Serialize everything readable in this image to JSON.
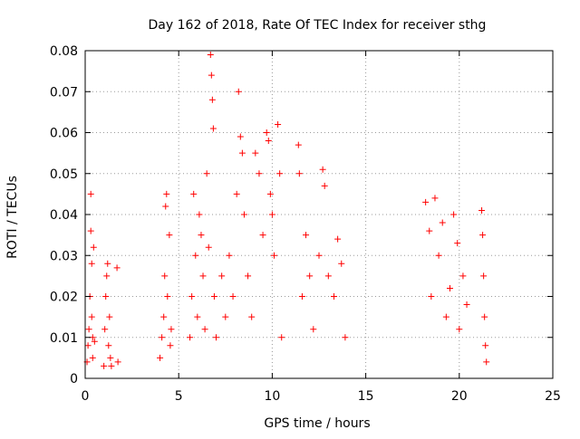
{
  "chart_data": {
    "type": "scatter",
    "title": "Day 162 of 2018, Rate Of TEC Index for receiver sthg",
    "xlabel": "GPS time / hours",
    "ylabel": "ROTI / TECUs",
    "xlim": [
      0,
      25
    ],
    "ylim": [
      0,
      0.08
    ],
    "xticks": [
      0,
      5,
      10,
      15,
      20,
      25
    ],
    "xtick_labels": [
      "0",
      "5",
      "10",
      "15",
      "20",
      "25"
    ],
    "yticks": [
      0,
      0.01,
      0.02,
      0.03,
      0.04,
      0.05,
      0.06,
      0.07,
      0.08
    ],
    "ytick_labels": [
      "0",
      "0.01",
      "0.02",
      "0.03",
      "0.04",
      "0.05",
      "0.06",
      "0.07",
      "0.08"
    ],
    "grid": true,
    "marker": "+",
    "marker_color": "#ff0000",
    "series": [
      {
        "name": "ROTI",
        "points": [
          [
            0.1,
            0.004
          ],
          [
            0.15,
            0.008
          ],
          [
            0.2,
            0.012
          ],
          [
            0.25,
            0.02
          ],
          [
            0.3,
            0.045
          ],
          [
            0.3,
            0.036
          ],
          [
            0.35,
            0.028
          ],
          [
            0.35,
            0.015
          ],
          [
            0.4,
            0.01
          ],
          [
            0.4,
            0.005
          ],
          [
            0.45,
            0.032
          ],
          [
            0.5,
            0.009
          ],
          [
            1.0,
            0.003
          ],
          [
            1.05,
            0.012
          ],
          [
            1.1,
            0.02
          ],
          [
            1.15,
            0.025
          ],
          [
            1.2,
            0.028
          ],
          [
            1.25,
            0.008
          ],
          [
            1.3,
            0.015
          ],
          [
            1.35,
            0.005
          ],
          [
            1.4,
            0.003
          ],
          [
            1.7,
            0.027
          ],
          [
            1.75,
            0.004
          ],
          [
            4.0,
            0.005
          ],
          [
            4.1,
            0.01
          ],
          [
            4.2,
            0.015
          ],
          [
            4.25,
            0.025
          ],
          [
            4.3,
            0.042
          ],
          [
            4.35,
            0.045
          ],
          [
            4.4,
            0.02
          ],
          [
            4.5,
            0.035
          ],
          [
            4.55,
            0.008
          ],
          [
            4.6,
            0.012
          ],
          [
            5.6,
            0.01
          ],
          [
            5.7,
            0.02
          ],
          [
            5.8,
            0.045
          ],
          [
            5.9,
            0.03
          ],
          [
            6.0,
            0.015
          ],
          [
            6.1,
            0.04
          ],
          [
            6.2,
            0.035
          ],
          [
            6.3,
            0.025
          ],
          [
            6.4,
            0.012
          ],
          [
            6.5,
            0.05
          ],
          [
            6.6,
            0.032
          ],
          [
            6.7,
            0.079
          ],
          [
            6.75,
            0.074
          ],
          [
            6.8,
            0.068
          ],
          [
            6.85,
            0.061
          ],
          [
            6.9,
            0.02
          ],
          [
            7.0,
            0.01
          ],
          [
            7.3,
            0.025
          ],
          [
            7.5,
            0.015
          ],
          [
            7.7,
            0.03
          ],
          [
            7.9,
            0.02
          ],
          [
            8.1,
            0.045
          ],
          [
            8.2,
            0.07
          ],
          [
            8.3,
            0.059
          ],
          [
            8.4,
            0.055
          ],
          [
            8.5,
            0.04
          ],
          [
            8.7,
            0.025
          ],
          [
            8.9,
            0.015
          ],
          [
            9.1,
            0.055
          ],
          [
            9.3,
            0.05
          ],
          [
            9.5,
            0.035
          ],
          [
            9.7,
            0.06
          ],
          [
            9.8,
            0.058
          ],
          [
            9.9,
            0.045
          ],
          [
            10.0,
            0.04
          ],
          [
            10.1,
            0.03
          ],
          [
            10.3,
            0.062
          ],
          [
            10.4,
            0.05
          ],
          [
            10.5,
            0.01
          ],
          [
            11.4,
            0.057
          ],
          [
            11.45,
            0.05
          ],
          [
            11.6,
            0.02
          ],
          [
            11.8,
            0.035
          ],
          [
            12.0,
            0.025
          ],
          [
            12.2,
            0.012
          ],
          [
            12.5,
            0.03
          ],
          [
            12.7,
            0.051
          ],
          [
            12.8,
            0.047
          ],
          [
            13.0,
            0.025
          ],
          [
            13.3,
            0.02
          ],
          [
            13.5,
            0.034
          ],
          [
            13.7,
            0.028
          ],
          [
            13.9,
            0.01
          ],
          [
            18.2,
            0.043
          ],
          [
            18.4,
            0.036
          ],
          [
            18.5,
            0.02
          ],
          [
            18.7,
            0.044
          ],
          [
            18.9,
            0.03
          ],
          [
            19.1,
            0.038
          ],
          [
            19.3,
            0.015
          ],
          [
            19.5,
            0.022
          ],
          [
            19.7,
            0.04
          ],
          [
            19.9,
            0.033
          ],
          [
            20.0,
            0.012
          ],
          [
            20.2,
            0.025
          ],
          [
            20.4,
            0.018
          ],
          [
            21.2,
            0.041
          ],
          [
            21.25,
            0.035
          ],
          [
            21.3,
            0.025
          ],
          [
            21.35,
            0.015
          ],
          [
            21.4,
            0.008
          ],
          [
            21.45,
            0.004
          ]
        ]
      }
    ],
    "annotations": []
  }
}
